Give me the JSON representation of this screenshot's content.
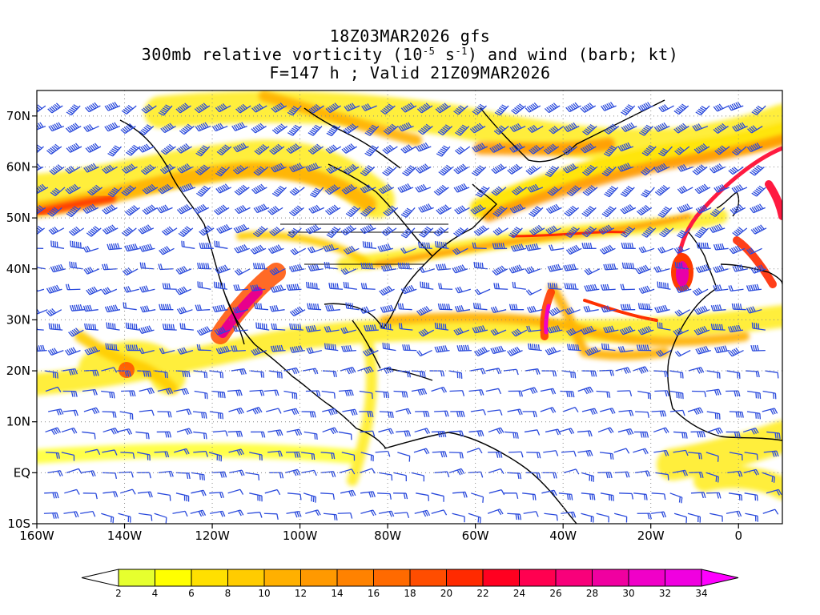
{
  "titles": {
    "line1": "18Z03MAR2026 gfs",
    "line2_pre": "300mb relative vorticity (10",
    "line2_exp1": "-5",
    "line2_mid": " s",
    "line2_exp2": "-1",
    "line2_post": ") and wind (barb; kt)",
    "line3": "F=147 h ; Valid 21Z09MAR2026"
  },
  "axes": {
    "lat_labels": [
      "70N",
      "60N",
      "50N",
      "40N",
      "30N",
      "20N",
      "10N",
      "EQ",
      "10S"
    ],
    "lat_values": [
      70,
      60,
      50,
      40,
      30,
      20,
      10,
      0,
      -10
    ],
    "lon_labels": [
      "160W",
      "140W",
      "120W",
      "100W",
      "80W",
      "60W",
      "40W",
      "20W",
      "0"
    ],
    "lon_values": [
      -160,
      -140,
      -120,
      -100,
      -80,
      -60,
      -40,
      -20,
      0
    ],
    "lon_range": [
      -160,
      10
    ],
    "lat_range": [
      -10,
      75
    ]
  },
  "colorbar": {
    "labels": [
      "2",
      "4",
      "6",
      "8",
      "10",
      "12",
      "14",
      "16",
      "18",
      "20",
      "22",
      "24",
      "26",
      "28",
      "30",
      "32",
      "34"
    ],
    "colors": [
      "#e6ff2e",
      "#ffff00",
      "#ffe000",
      "#ffcc00",
      "#ffb000",
      "#ff9900",
      "#ff8200",
      "#ff6a00",
      "#ff4d00",
      "#ff2a00",
      "#ff0020",
      "#ff0050",
      "#f8007a",
      "#f000a0",
      "#f000c8",
      "#f000e0",
      "#ff00ff"
    ]
  },
  "features": [
    {
      "type": "vorticity-band",
      "name": "north-pacific-jet"
    },
    {
      "type": "vorticity-band",
      "name": "baja-trough"
    },
    {
      "type": "vorticity-band",
      "name": "subtropical-jet"
    },
    {
      "type": "vorticity-band",
      "name": "central-atlantic-trough"
    },
    {
      "type": "vorticity-band",
      "name": "iberia-cutoff-low"
    }
  ]
}
